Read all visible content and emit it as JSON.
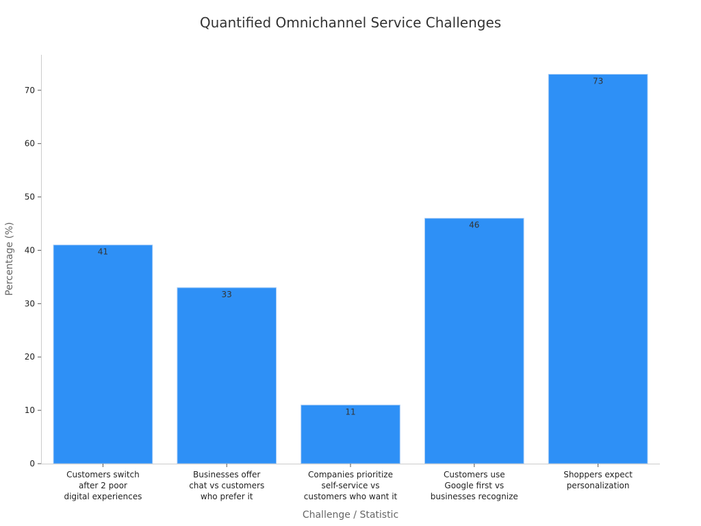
{
  "chart_data": {
    "type": "bar",
    "title": "Quantified Omnichannel Service Challenges",
    "xlabel": "Challenge / Statistic",
    "ylabel": "Percentage (%)",
    "categories": [
      [
        "Customers switch",
        "after 2 poor",
        "digital experiences"
      ],
      [
        "Businesses offer",
        "chat vs customers",
        "who prefer it"
      ],
      [
        "Companies prioritize",
        "self-service vs",
        "customers who want it"
      ],
      [
        "Customers use",
        "Google first vs",
        "businesses recognize"
      ],
      [
        "Shoppers expect",
        "personalization"
      ]
    ],
    "values": [
      41,
      33,
      11,
      46,
      73
    ],
    "ylim": [
      0,
      76.65
    ],
    "yticks": [
      0,
      10,
      20,
      30,
      40,
      50,
      60,
      70
    ],
    "grid": false,
    "bar_color": "#2e90f6",
    "bar_edge_color": "#a9cef6"
  }
}
